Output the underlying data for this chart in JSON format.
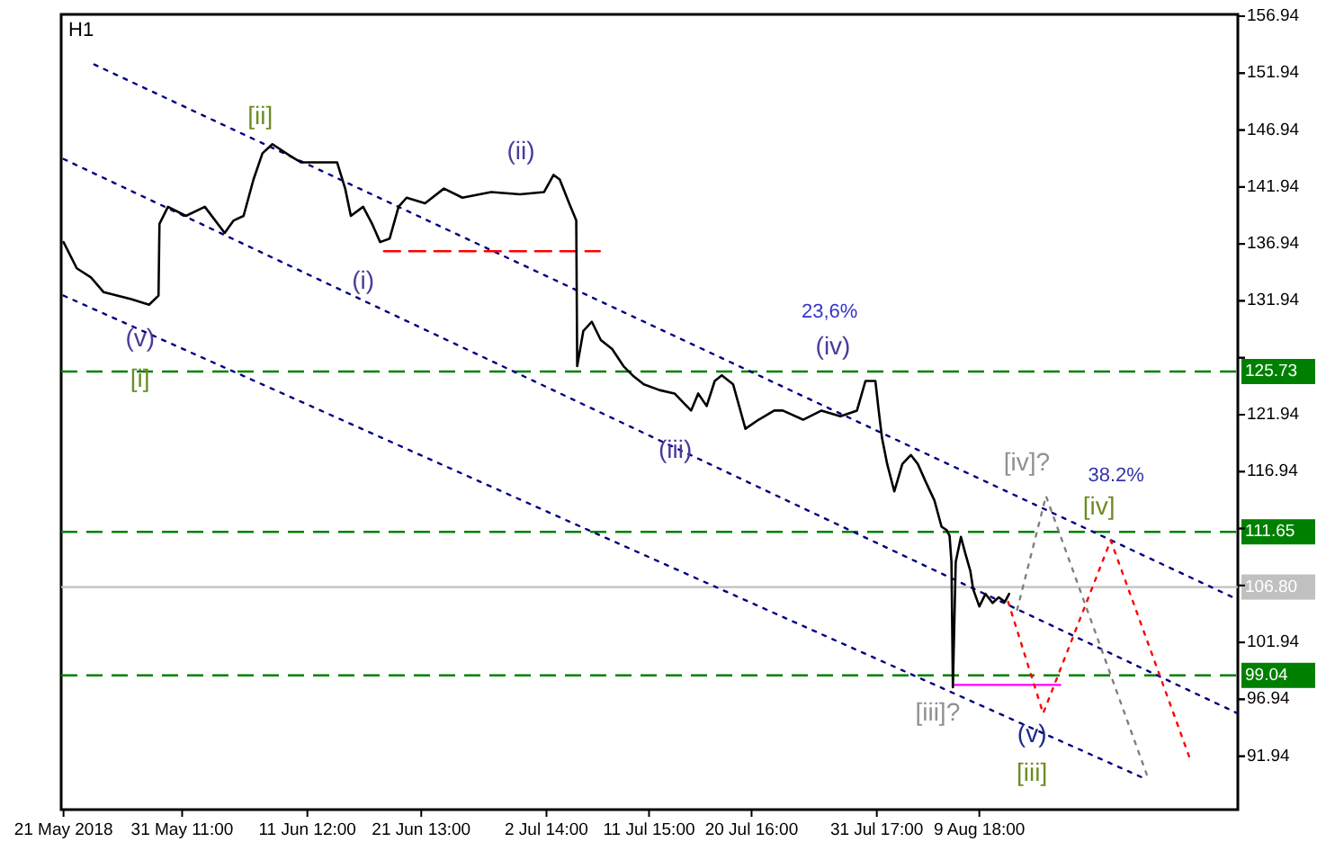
{
  "chart_data": {
    "type": "line",
    "title": "H1",
    "xlim": [
      "2018-05-20T19:00",
      "2018-09-01T13:00"
    ],
    "ylim": [
      87.25,
      157.1
    ],
    "xticks": [
      {
        "value": "2018-05-21T00:00",
        "label": "21 May 2018"
      },
      {
        "value": "2018-05-31T11:00",
        "label": "31 May 11:00"
      },
      {
        "value": "2018-06-11T12:00",
        "label": "11 Jun 12:00"
      },
      {
        "value": "2018-06-21T13:00",
        "label": "21 Jun 13:00"
      },
      {
        "value": "2018-07-02T14:00",
        "label": "2 Jul 14:00"
      },
      {
        "value": "2018-07-11T15:00",
        "label": "11 Jul 15:00"
      },
      {
        "value": "2018-07-20T16:00",
        "label": "20 Jul 16:00"
      },
      {
        "value": "2018-07-31T17:00",
        "label": "31 Jul 17:00"
      },
      {
        "value": "2018-08-09T18:00",
        "label": "9 Aug 18:00"
      }
    ],
    "yticks": [
      91.94,
      96.94,
      101.94,
      {
        "value": 106.94,
        "label": null
      },
      {
        "value": 111.94,
        "label": null
      },
      116.94,
      121.94,
      {
        "value": 126.94,
        "label": null
      },
      131.94,
      136.94,
      141.94,
      146.94,
      151.94,
      156.94
    ],
    "grid": false,
    "marker": "none",
    "series": [
      {
        "color": "#000080",
        "line_style": "dotted",
        "x": [
          "2018-05-23T17:00",
          "2018-09-01T13:00"
        ],
        "values": [
          152.7,
          105.7
        ]
      },
      {
        "color": "#000080",
        "line_style": "dotted",
        "x": [
          "2018-05-21T00:00",
          "2018-09-01T13:00"
        ],
        "values": [
          144.4,
          95.7
        ]
      },
      {
        "color": "#000080",
        "line_style": "dotted",
        "x": [
          "2018-05-21T00:00",
          "2018-08-24T12:00"
        ],
        "values": [
          132.4,
          89.9
        ]
      },
      {
        "color": "#ff0000",
        "line_style": "dashed",
        "x": [
          "2018-06-18T06:00",
          "2018-07-07T07:00"
        ],
        "values": [
          136.3,
          136.3
        ]
      },
      {
        "color": "#ff00ff",
        "line_style": "solid",
        "x": [
          "2018-08-07T10:00",
          "2018-08-16T21:00"
        ],
        "values": [
          98.2,
          98.2
        ]
      },
      {
        "color": "#808080",
        "line_style": "dotted",
        "x": [
          "2018-08-13T02:00",
          "2018-08-15T15:00",
          "2018-08-24T16:00"
        ],
        "values": [
          104.8,
          114.8,
          89.9
        ]
      },
      {
        "color": "#ff0000",
        "line_style": "dotted",
        "x": [
          "2018-08-12T07:00",
          "2018-08-15T09:00",
          "2018-08-21T08:00",
          "2018-08-28T07:00"
        ],
        "values": [
          105.5,
          95.7,
          110.9,
          91.8
        ]
      },
      {
        "color": "#000000",
        "line_style": "solid",
        "x": [
          "2018-05-21T00:00",
          "2018-05-22T04:00",
          "2018-05-23T10:00",
          "2018-05-24T13:00",
          "2018-05-25T17:00",
          "2018-05-26T23:00",
          "2018-05-28T13:00",
          "2018-05-29T09:00",
          "2018-05-29T11:00",
          "2018-05-30T05:00",
          "2018-05-31T19:00",
          "2018-06-02T11:00",
          "2018-06-04T05:00",
          "2018-06-05T00:00",
          "2018-06-05T21:00",
          "2018-06-06T18:00",
          "2018-06-07T13:00",
          "2018-06-08T10:00",
          "2018-06-10T02:00",
          "2018-06-10T23:00",
          "2018-06-12T12:00",
          "2018-06-14T03:00",
          "2018-06-14T20:00",
          "2018-06-15T08:00",
          "2018-06-16T10:00",
          "2018-06-17T05:00",
          "2018-06-17T22:00",
          "2018-06-18T18:00",
          "2018-06-19T13:00",
          "2018-06-20T06:00",
          "2018-06-21T21:00",
          "2018-06-23T13:00",
          "2018-06-25T04:00",
          "2018-06-27T17:00",
          "2018-06-30T06:00",
          "2018-07-02T09:00",
          "2018-07-03T05:00",
          "2018-07-03T18:00",
          "2018-07-04T14:00",
          "2018-07-05T05:00",
          "2018-07-05T07:00",
          "2018-07-05T20:00",
          "2018-07-06T14:00",
          "2018-07-07T09:00",
          "2018-07-08T09:00",
          "2018-07-09T09:00",
          "2018-07-10T04:00",
          "2018-07-11T04:00",
          "2018-07-12T13:00",
          "2018-07-13T21:00",
          "2018-07-15T08:00",
          "2018-07-15T23:00",
          "2018-07-16T17:00",
          "2018-07-17T10:00",
          "2018-07-18T01:00",
          "2018-07-19T01:00",
          "2018-07-20T03:00",
          "2018-07-21T07:00",
          "2018-07-22T16:00",
          "2018-07-23T10:00",
          "2018-07-25T05:00",
          "2018-07-26T20:00",
          "2018-07-28T12:00",
          "2018-07-29T23:00",
          "2018-07-30T17:00",
          "2018-07-31T14:00",
          "2018-07-31T21:00",
          "2018-08-01T04:00",
          "2018-08-01T15:00",
          "2018-08-02T06:00",
          "2018-08-02T23:00",
          "2018-08-03T17:00",
          "2018-08-04T08:00",
          "2018-08-05T01:00",
          "2018-08-05T19:00",
          "2018-08-06T10:00",
          "2018-08-06T21:00",
          "2018-08-07T03:00",
          "2018-08-07T07:00",
          "2018-08-07T10:00",
          "2018-08-07T16:00",
          "2018-08-08T03:00",
          "2018-08-08T12:00",
          "2018-08-08T23:00",
          "2018-08-09T05:00",
          "2018-08-09T18:00",
          "2018-08-10T07:00",
          "2018-08-10T22:00",
          "2018-08-11T11:00",
          "2018-08-12T00:00",
          "2018-08-12T09:00"
        ],
        "values": [
          137.1,
          134.8,
          134,
          132.7,
          132.4,
          132.1,
          131.6,
          132.4,
          138.7,
          140.2,
          139.4,
          140.2,
          137.9,
          139,
          139.4,
          142.6,
          144.9,
          145.7,
          144.6,
          144.1,
          144.1,
          144.1,
          141.8,
          139.4,
          140.2,
          138.7,
          137.1,
          137.4,
          140.2,
          141,
          140.5,
          141.8,
          141,
          141.5,
          141.3,
          141.5,
          143,
          142.6,
          140.5,
          139,
          126.2,
          129.3,
          130.1,
          128.5,
          127.7,
          126.2,
          125.4,
          124.6,
          124.1,
          123.8,
          122.3,
          123.8,
          122.7,
          124.9,
          125.4,
          124.6,
          120.7,
          121.5,
          122.3,
          122.3,
          121.5,
          122.3,
          121.8,
          122.3,
          124.9,
          124.9,
          122.3,
          119.9,
          117.6,
          115.2,
          117.6,
          118.4,
          117.6,
          116,
          114.4,
          112.1,
          111.8,
          111.3,
          109,
          98,
          109,
          111.2,
          109.8,
          108.2,
          106.6,
          105.1,
          106.2,
          105.4,
          105.9,
          105.5,
          106.2
        ]
      }
    ],
    "ref_lines": [
      {
        "axis": "y",
        "value": 125.73,
        "label": "125.73",
        "color": "#008000",
        "line_style": "dashed"
      },
      {
        "axis": "y",
        "value": 111.65,
        "label": "111.65",
        "color": "#008000",
        "line_style": "dashed"
      },
      {
        "axis": "y",
        "value": 106.8,
        "label": "106.80",
        "color": "#c0c0c0",
        "line_style": "solid"
      },
      {
        "axis": "y",
        "value": 99.04,
        "label": "99.04",
        "color": "#008000",
        "line_style": "dashed"
      }
    ],
    "annotations": [
      "[ii]",
      "(ii)",
      "(i)",
      "(v)",
      "[i]",
      "23,6%",
      "(iv)",
      "(iii)",
      "[iv]?",
      "38.2%",
      "[iv]",
      "[iii]?",
      "(v)",
      "[iii]"
    ]
  }
}
